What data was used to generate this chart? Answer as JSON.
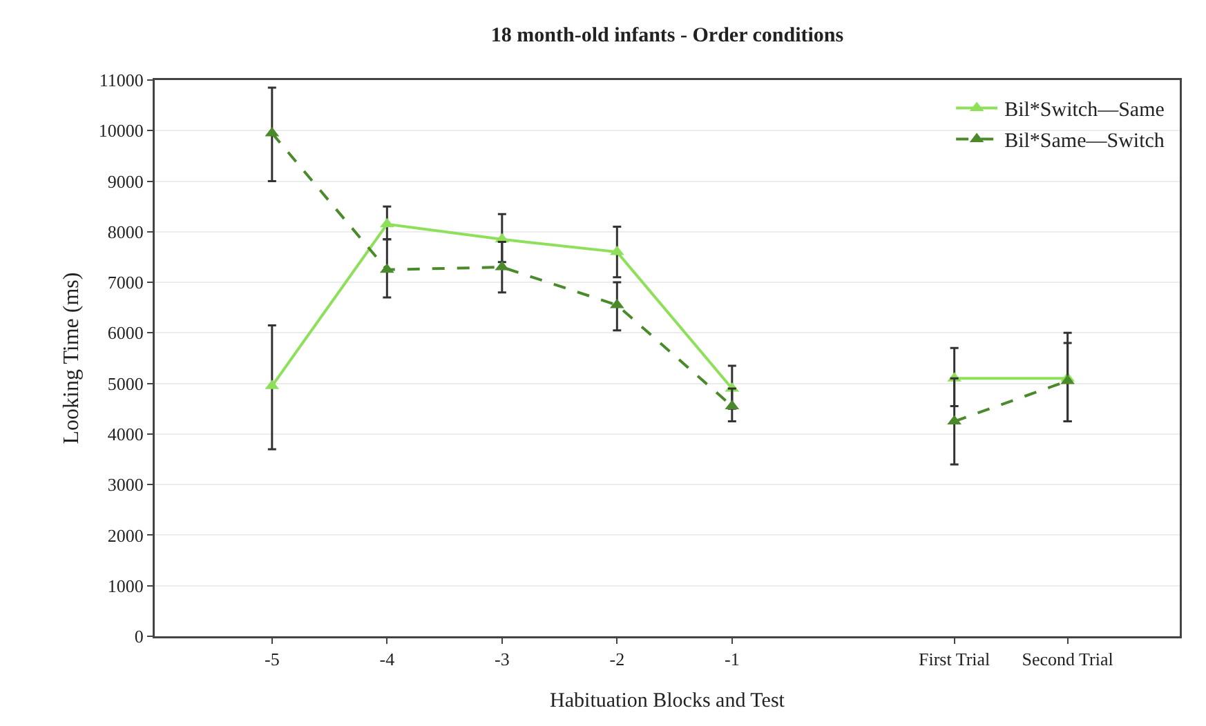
{
  "chart_data": [
    {
      "type": "line",
      "title": "18 month-old infants - Order conditions",
      "xlabel": "Habituation Blocks and Test",
      "ylabel": "Looking Time (ms)",
      "categories": [
        "-5",
        "-4",
        "-3",
        "-2",
        "-1"
      ],
      "ylim": [
        0,
        11000
      ],
      "yticks": [
        0,
        1000,
        2000,
        3000,
        4000,
        5000,
        6000,
        7000,
        8000,
        9000,
        10000,
        11000
      ],
      "grid": "y",
      "marker": "triangle",
      "legend": false,
      "series": [
        {
          "color": "#8ee05a",
          "line_style": "solid",
          "values": [
            4950,
            8150,
            7850,
            7600,
            4900
          ],
          "errors": [
            [
              3700,
              6150
            ],
            [
              7850,
              8500
            ],
            [
              7400,
              8350
            ],
            [
              7100,
              8100
            ],
            [
              4500,
              5350
            ]
          ]
        },
        {
          "color": "#4a8a2a",
          "line_style": "dashed",
          "values": [
            9950,
            7250,
            7300,
            6550,
            4550
          ],
          "errors": [
            [
              9000,
              10850
            ],
            [
              6700,
              7850
            ],
            [
              6800,
              7800
            ],
            [
              6050,
              7000
            ],
            [
              4250,
              4900
            ]
          ]
        }
      ]
    },
    {
      "type": "line",
      "categories": [
        "First Trial",
        "Second Trial"
      ],
      "ylim": [
        0,
        11000
      ],
      "yticks": [
        0,
        1000,
        2000,
        3000,
        4000,
        5000,
        6000,
        7000,
        8000,
        9000,
        10000,
        11000
      ],
      "grid": "y",
      "marker": "triangle",
      "legend": "top right",
      "tick_labels": "x",
      "series": [
        {
          "name": "Bil*Switch—Same",
          "color": "#8ee05a",
          "line_style": "solid",
          "values": [
            5100,
            5100
          ],
          "errors": [
            [
              4550,
              5700
            ],
            [
              4250,
              6000
            ]
          ]
        },
        {
          "name": "Bil*Same—Switch",
          "color": "#4a8a2a",
          "line_style": "dashed",
          "values": [
            4250,
            5050
          ],
          "errors": [
            [
              3400,
              5100
            ],
            [
              4250,
              5800
            ]
          ]
        }
      ]
    }
  ]
}
